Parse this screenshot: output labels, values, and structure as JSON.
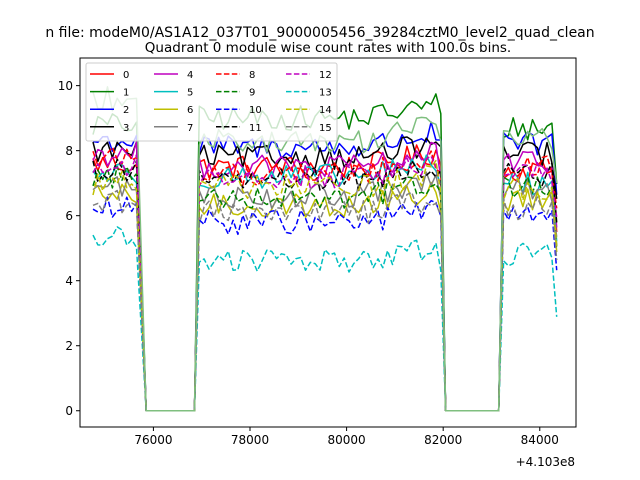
{
  "suptitle": "n file: modeM0/AS1A12_037T01_9000005456_39284cztM0_level2_quad_clean",
  "chart_data": {
    "type": "line",
    "title": "Quadrant 0 module wise count rates with 100.0s bins.",
    "xlabel": "",
    "ylabel": "",
    "x_offset_label": "+4.103e8",
    "xlim": [
      74480,
      84750
    ],
    "ylim": [
      -0.5,
      10.85
    ],
    "xticks": [
      76000,
      78000,
      80000,
      82000,
      84000
    ],
    "xtick_labels": [
      "76000",
      "78000",
      "80000",
      "82000",
      "84000"
    ],
    "yticks": [
      0,
      2,
      4,
      6,
      8,
      10
    ],
    "ytick_labels": [
      "0",
      "2",
      "4",
      "6",
      "8",
      "10"
    ],
    "grid": false,
    "legend_position": "top-left",
    "segments": [
      {
        "start": 74750,
        "end": 75650,
        "drop_to": 75850,
        "floor_end": 76850
      },
      {
        "start": 76950,
        "end": 81950,
        "floor_start": 82050,
        "floor_end": 83150
      },
      {
        "start": 83250,
        "end": 84350
      }
    ],
    "series": [
      {
        "name": "0",
        "color": "#ff0000",
        "dash": "solid",
        "levels": [
          7.6,
          7.5,
          7.4
        ]
      },
      {
        "name": "1",
        "color": "#008000",
        "dash": "solid",
        "levels": [
          8.8,
          9.0,
          8.7
        ]
      },
      {
        "name": "2",
        "color": "#0000ff",
        "dash": "solid",
        "levels": [
          8.3,
          8.1,
          8.2
        ]
      },
      {
        "name": "3",
        "color": "#000000",
        "dash": "solid",
        "levels": [
          8.0,
          7.8,
          7.9
        ]
      },
      {
        "name": "4",
        "color": "#bf00bf",
        "dash": "solid",
        "levels": [
          7.9,
          7.5,
          7.6
        ]
      },
      {
        "name": "5",
        "color": "#00bfbf",
        "dash": "solid",
        "levels": [
          7.3,
          7.2,
          7.0
        ]
      },
      {
        "name": "6",
        "color": "#bfbf00",
        "dash": "solid",
        "levels": [
          6.6,
          6.3,
          6.5
        ]
      },
      {
        "name": "7",
        "color": "#808080",
        "dash": "solid",
        "levels": [
          6.9,
          6.6,
          6.8
        ]
      },
      {
        "name": "8",
        "color": "#ff0000",
        "dash": "dashed",
        "levels": [
          7.8,
          7.3,
          7.5
        ]
      },
      {
        "name": "9",
        "color": "#008000",
        "dash": "dashed",
        "levels": [
          7.2,
          6.6,
          6.9
        ]
      },
      {
        "name": "10",
        "color": "#0000ff",
        "dash": "dashed",
        "levels": [
          6.2,
          5.8,
          6.0
        ]
      },
      {
        "name": "11",
        "color": "#000000",
        "dash": "dashed",
        "levels": [
          7.4,
          7.1,
          7.3
        ]
      },
      {
        "name": "12",
        "color": "#bf00bf",
        "dash": "dashed",
        "levels": [
          7.5,
          7.2,
          7.3
        ]
      },
      {
        "name": "13",
        "color": "#00bfbf",
        "dash": "dashed",
        "levels": [
          5.3,
          4.6,
          4.8
        ]
      },
      {
        "name": "14",
        "color": "#bfbf00",
        "dash": "dashed",
        "levels": [
          7.0,
          6.9,
          6.8
        ]
      },
      {
        "name": "15",
        "color": "#808080",
        "dash": "dashed",
        "levels": [
          6.4,
          6.1,
          6.2
        ]
      },
      {
        "name": "",
        "color": "#7fbf7f",
        "dash": "solid",
        "levels": [
          9.6,
          8.3,
          8.4
        ]
      }
    ]
  }
}
